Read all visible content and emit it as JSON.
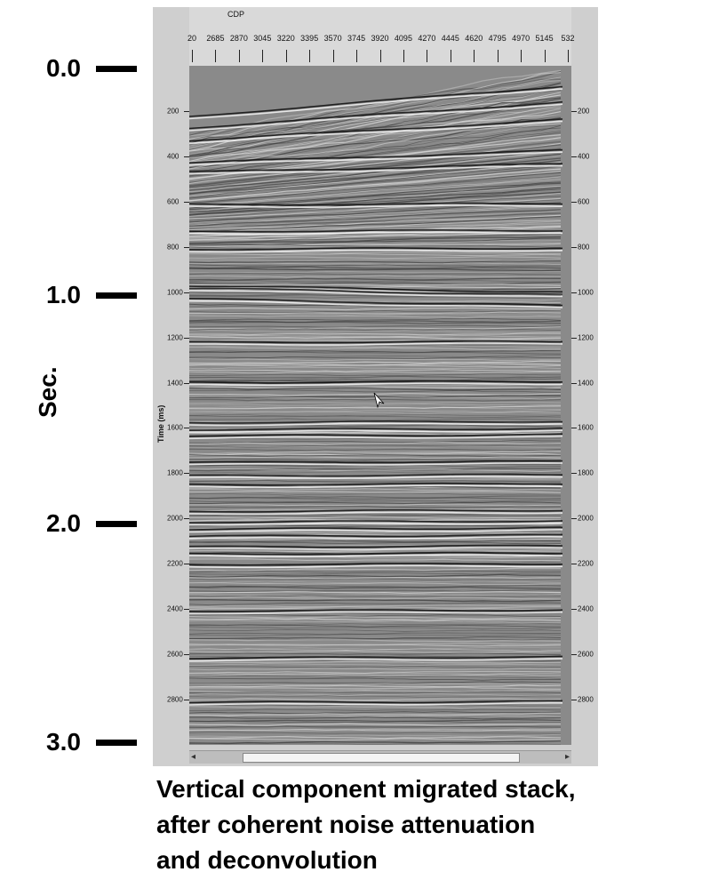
{
  "seconds_axis": {
    "label": "Sec.",
    "ticks": [
      "0.0",
      "1.0",
      "2.0",
      "3.0"
    ]
  },
  "viewer": {
    "cdp_label": "CDP",
    "cdp_ticks": [
      "20",
      "2685",
      "2870",
      "3045",
      "3220",
      "3395",
      "3570",
      "3745",
      "3920",
      "4095",
      "4270",
      "4445",
      "4620",
      "4795",
      "4970",
      "5145",
      "532"
    ],
    "time_axis_label": "Time (ms)",
    "time_ticks": [
      "200",
      "400",
      "600",
      "800",
      "1000",
      "1200",
      "1400",
      "1600",
      "1800",
      "2000",
      "2200",
      "2400",
      "2600",
      "2800"
    ],
    "scrollbar_left_arrow": "◂",
    "scrollbar_right_arrow": "▸"
  },
  "caption": {
    "lines": [
      "Vertical component migrated stack,",
      "after coherent noise attenuation",
      "and deconvolution"
    ]
  },
  "colors": {
    "background": "#ffffff",
    "viewer_frame": "#cfcfcf",
    "seismic_base": "#8a8a8a"
  }
}
